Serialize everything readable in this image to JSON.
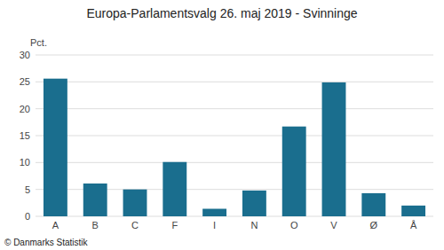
{
  "chart_data": {
    "type": "bar",
    "title": "Europa-Parlamentsvalg 26. maj 2019 - Svinninge",
    "categories": [
      "A",
      "B",
      "C",
      "F",
      "I",
      "N",
      "O",
      "V",
      "Ø",
      "Å"
    ],
    "values": [
      25.6,
      6.1,
      5.0,
      10.1,
      1.4,
      4.8,
      16.7,
      24.9,
      4.3,
      2.0
    ],
    "color": "#1a6e8e",
    "y_label": "Pct.",
    "footer": "© Danmarks Statistik",
    "ylim": [
      0,
      30
    ],
    "yticks": [
      0,
      5,
      10,
      15,
      20,
      25,
      30
    ],
    "grid": true
  }
}
